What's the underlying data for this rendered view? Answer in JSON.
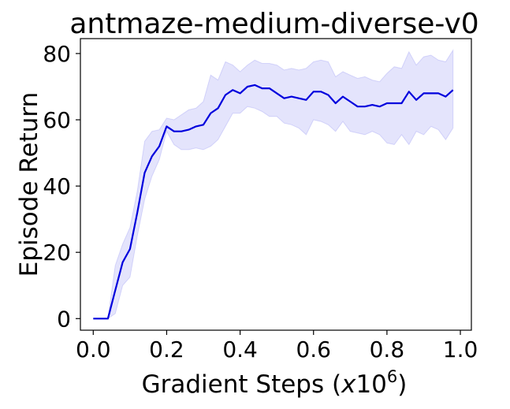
{
  "chart_data": {
    "type": "line",
    "title": "antmaze-medium-diverse-v0",
    "xlabel_prefix": "Gradient Steps (",
    "xlabel_var": "x",
    "xlabel_base": "10",
    "xlabel_exp": "6",
    "xlabel_suffix": ")",
    "ylabel": "Episode Return",
    "xlim": [
      -0.035,
      1.03
    ],
    "ylim": [
      -3.5,
      84.5
    ],
    "xticks": [
      0.0,
      0.2,
      0.4,
      0.6,
      0.8,
      1.0
    ],
    "xtick_labels": [
      "0.0",
      "0.2",
      "0.4",
      "0.6",
      "0.8",
      "1.0"
    ],
    "yticks": [
      0,
      20,
      40,
      60,
      80
    ],
    "ytick_labels": [
      "0",
      "20",
      "40",
      "60",
      "80"
    ],
    "grid": false,
    "series": [
      {
        "color": "#0000dd",
        "band_color": "#7777ee",
        "x": [
          0.0,
          0.02,
          0.04,
          0.06,
          0.08,
          0.1,
          0.12,
          0.14,
          0.16,
          0.18,
          0.2,
          0.22,
          0.24,
          0.26,
          0.28,
          0.3,
          0.32,
          0.34,
          0.36,
          0.38,
          0.4,
          0.42,
          0.44,
          0.46,
          0.48,
          0.5,
          0.52,
          0.54,
          0.56,
          0.58,
          0.6,
          0.62,
          0.64,
          0.66,
          0.68,
          0.7,
          0.72,
          0.74,
          0.76,
          0.78,
          0.8,
          0.82,
          0.84,
          0.86,
          0.88,
          0.9,
          0.92,
          0.94,
          0.96,
          0.98
        ],
        "values": [
          0,
          0,
          0,
          8.5,
          17,
          21,
          32,
          44,
          49,
          52,
          58,
          56.5,
          56.5,
          57,
          58,
          58.5,
          62,
          63.5,
          67.5,
          69,
          68,
          70,
          70.5,
          69.5,
          69.5,
          68,
          66.5,
          67,
          66.5,
          66,
          68.5,
          68.5,
          67.5,
          65,
          67,
          65.5,
          64,
          64,
          64.5,
          64,
          65,
          65,
          65,
          68.5,
          66,
          68,
          68,
          68,
          67,
          69
        ],
        "lower": [
          0,
          0,
          0,
          1.5,
          10,
          12.5,
          25,
          36,
          43,
          48,
          56.5,
          52.5,
          51,
          51,
          51.5,
          51,
          52,
          54,
          58,
          62,
          62,
          64,
          63.5,
          62.5,
          61,
          61,
          59,
          58.5,
          57.5,
          55.5,
          60,
          59.5,
          58.5,
          56.5,
          59.5,
          56.5,
          56,
          55.5,
          56.5,
          55.5,
          53,
          52.5,
          55.5,
          52.5,
          56.5,
          55.5,
          58,
          57,
          54,
          57.5
        ],
        "upper": [
          0,
          0,
          0,
          16,
          22.5,
          27.5,
          38.5,
          53.5,
          56.5,
          57,
          60.5,
          60,
          61.5,
          63,
          63.5,
          65.5,
          73.5,
          72,
          77.5,
          76.5,
          74.5,
          76.5,
          78,
          77,
          77,
          76.5,
          75,
          75.5,
          75,
          75.5,
          77.5,
          78,
          77.5,
          73,
          74.5,
          73.5,
          72.5,
          73,
          72,
          71.5,
          74,
          76,
          75.5,
          80.5,
          76.5,
          79,
          79.5,
          78,
          77.5,
          81
        ]
      }
    ]
  }
}
